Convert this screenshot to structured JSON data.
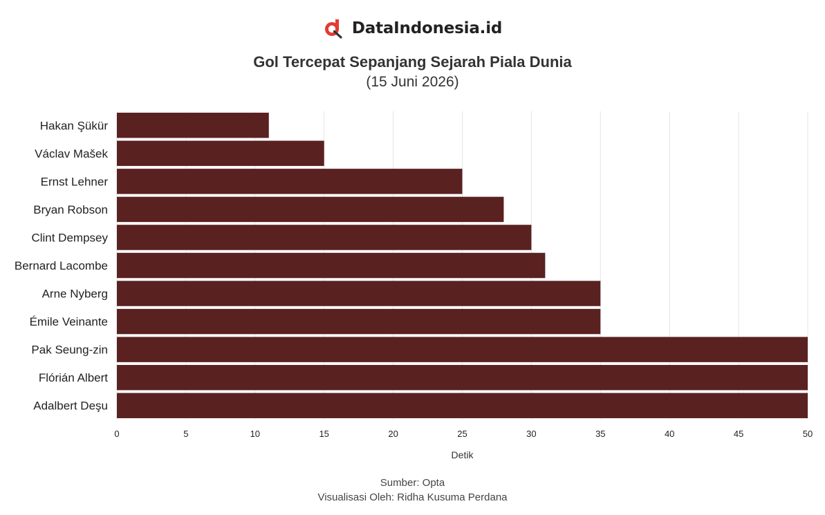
{
  "brand": {
    "name": "DataIndonesia.id",
    "logo_color": "#e53935",
    "logo_icon": "magnifier-d-logo-icon"
  },
  "chart_data": {
    "type": "bar",
    "orientation": "horizontal",
    "title": "Gol Tercepat Sepanjang Sejarah Piala Dunia",
    "subtitle": "(15 Juni 2026)",
    "xlabel": "Detik",
    "ylabel": "",
    "xlim": [
      0,
      50
    ],
    "xticks": [
      0,
      5,
      10,
      15,
      20,
      25,
      30,
      35,
      40,
      45,
      50
    ],
    "grid": true,
    "legend": "none",
    "bar_color": "#5a2121",
    "categories": [
      "Hakan Şükür",
      "Václav Mašek",
      "Ernst Lehner",
      "Bryan Robson",
      "Clint Dempsey",
      "Bernard Lacombe",
      "Arne Nyberg",
      "Émile Veinante",
      "Pak Seung-zin",
      "Flórián Albert",
      "Adalbert Deşu"
    ],
    "values": [
      11,
      15,
      25,
      28,
      30,
      31,
      35,
      35,
      50,
      50,
      50
    ]
  },
  "footer": {
    "source": "Sumber: Opta",
    "credit": "Visualisasi Oleh: Ridha Kusuma Perdana"
  }
}
